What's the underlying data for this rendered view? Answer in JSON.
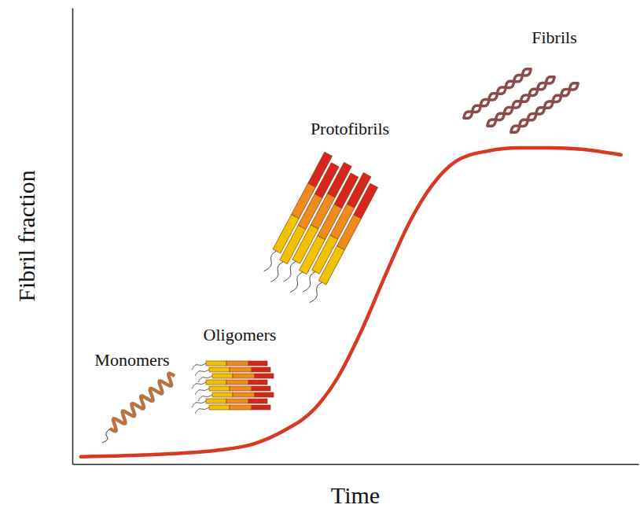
{
  "chart_data": {
    "type": "line",
    "x_label": "Time",
    "y_label": "Fibril fraction",
    "annotations": [
      "Monomers",
      "Oligomers",
      "Protofibrils",
      "Fibrils"
    ],
    "x": [
      1.5,
      15,
      26.1,
      31.7,
      37.2,
      42.8,
      46.9,
      51.1,
      55.3,
      59.4,
      63.6,
      67.8,
      73.3,
      78.9,
      84.4,
      90,
      96.9
    ],
    "values": [
      1.6,
      2.1,
      3.1,
      4.3,
      7.2,
      12.1,
      19,
      29.3,
      41.4,
      52.6,
      61.2,
      66.4,
      68.6,
      69.3,
      69.3,
      69,
      67.8
    ],
    "color": "#d63a22",
    "xlim": [
      0,
      100
    ],
    "ylim": [
      0,
      100
    ],
    "xticks": [],
    "yticks": [],
    "tick_labels": false
  }
}
